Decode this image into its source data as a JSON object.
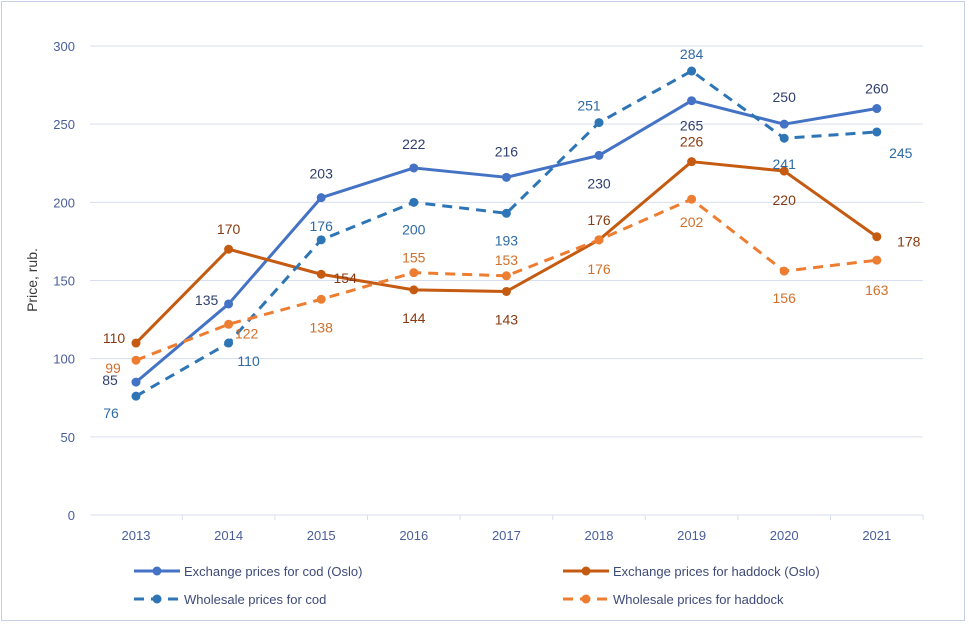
{
  "chart_data": {
    "type": "line",
    "title": "",
    "xlabel": "",
    "ylabel": "Price, rub.",
    "ylim": [
      0,
      300
    ],
    "yticks": [
      0,
      50,
      100,
      150,
      200,
      250,
      300
    ],
    "grid": true,
    "legend_position": "bottom",
    "categories": [
      "2013",
      "2014",
      "2015",
      "2016",
      "2017",
      "2018",
      "2019",
      "2020",
      "2021"
    ],
    "series": [
      {
        "name": "Exchange prices for cod (Oslo)",
        "color": "#4472c4",
        "style": "solid",
        "values": [
          85,
          135,
          203,
          222,
          216,
          230,
          265,
          250,
          260
        ]
      },
      {
        "name": "Exchange prices for haddock (Oslo)",
        "color": "#c55a11",
        "style": "solid",
        "values": [
          110,
          170,
          154,
          144,
          143,
          176,
          226,
          220,
          178
        ]
      },
      {
        "name": "Wholesale prices for cod",
        "color": "#2e75b6",
        "style": "dashed",
        "values": [
          76,
          110,
          176,
          200,
          193,
          251,
          284,
          241,
          245
        ]
      },
      {
        "name": "Wholesale prices for haddock",
        "color": "#ed7d31",
        "style": "dashed",
        "values": [
          99,
          122,
          138,
          155,
          153,
          176,
          202,
          156,
          163
        ]
      }
    ]
  }
}
